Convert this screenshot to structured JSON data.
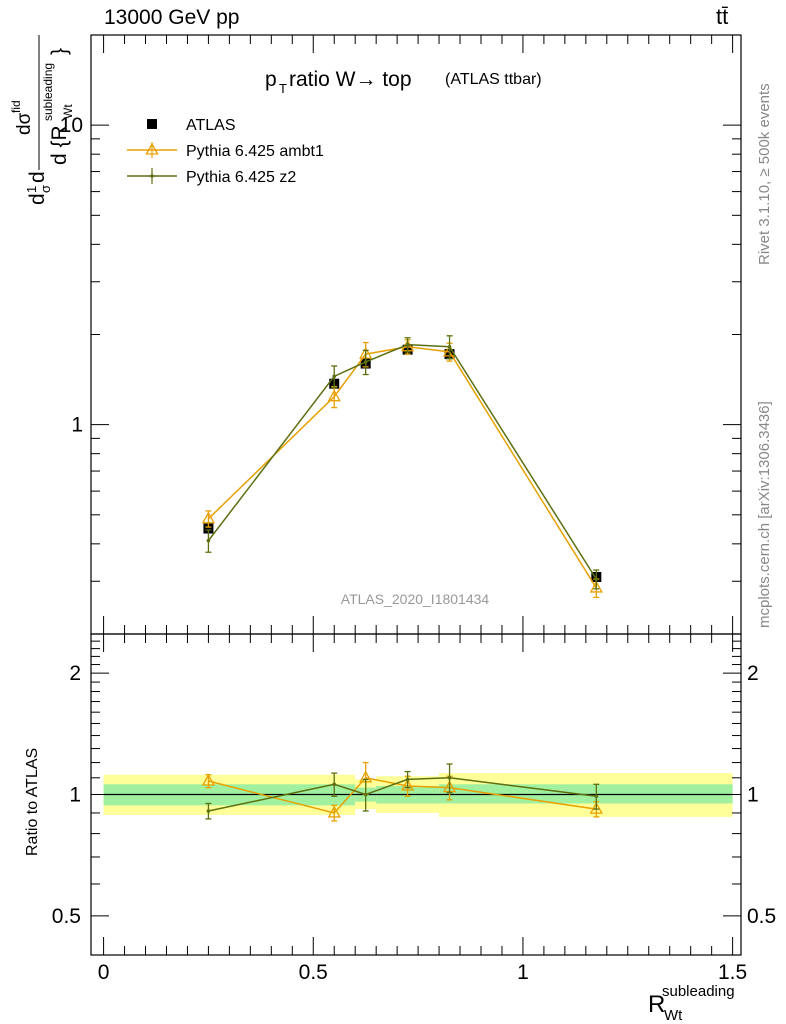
{
  "header": {
    "left": "13000 GeV pp",
    "right": "tt̄"
  },
  "side_text": {
    "rivet": "Rivet 3.1.10, ≥ 500k events",
    "mcplots": "mcplots.cern.ch [arXiv:1306.3436]"
  },
  "colors": {
    "atlas": "#000000",
    "ambt1": "#e8a000",
    "z2": "#5c7010",
    "band_inner": "#a0f0a0",
    "band_outer": "#ffff99",
    "watermark": "#999999"
  },
  "chart_data": [
    {
      "type": "line",
      "title": "p_T ratio W → top",
      "title_main": "p",
      "title_sub": "T",
      "title_rest": " ratio W→ top",
      "title_small": "(ATLAS ttbar)",
      "ylabel": "dσ/d{R_Wt^subleading} (1/σ)",
      "watermark": "ATLAS_2020_I1801434",
      "yscale": "log",
      "ylim": [
        0.2,
        20
      ],
      "xlim": [
        -0.03,
        1.52
      ],
      "legend_position": "top-left",
      "ytick_labels": [
        {
          "value": 1,
          "label": "1"
        },
        {
          "value": 10,
          "label": "10"
        }
      ],
      "x": [
        0.25,
        0.55,
        0.625,
        0.725,
        0.825,
        1.175
      ],
      "series": [
        {
          "name": "ATLAS",
          "marker": "square",
          "values": [
            0.45,
            1.37,
            1.6,
            1.78,
            1.72,
            0.31
          ]
        },
        {
          "name": "Pythia 6.425 ambt1",
          "marker": "triangle",
          "values": [
            0.485,
            1.24,
            1.72,
            1.82,
            1.75,
            0.285
          ],
          "errors": [
            0.03,
            0.1,
            0.16,
            0.1,
            0.12,
            0.02
          ]
        },
        {
          "name": "Pythia 6.425 z2",
          "marker": "dot",
          "values": [
            0.41,
            1.45,
            1.62,
            1.85,
            1.82,
            0.305
          ],
          "errors": [
            0.035,
            0.12,
            0.15,
            0.1,
            0.16,
            0.022
          ]
        }
      ]
    },
    {
      "type": "line",
      "ylabel": "Ratio to ATLAS",
      "xlabel": "R_Wt^subleading",
      "xlabel_main": "R",
      "xlabel_sup": "subleading",
      "xlabel_sub": "Wt",
      "yscale": "log",
      "ylim": [
        0.4,
        2.5
      ],
      "xlim": [
        -0.03,
        1.52
      ],
      "ytick_labels": [
        {
          "value": 0.5,
          "label": "0.5"
        },
        {
          "value": 1,
          "label": "1"
        },
        {
          "value": 2,
          "label": "2"
        }
      ],
      "xtick_labels": [
        {
          "value": 0,
          "label": "0"
        },
        {
          "value": 0.5,
          "label": "0.5"
        },
        {
          "value": 1,
          "label": "1"
        },
        {
          "value": 1.5,
          "label": "1.5"
        }
      ],
      "x": [
        0.25,
        0.55,
        0.625,
        0.725,
        0.825,
        1.175
      ],
      "bins": [
        [
          0,
          0.6
        ],
        [
          0.6,
          0.65
        ],
        [
          0.65,
          0.8
        ],
        [
          0.8,
          1.5
        ]
      ],
      "band_inner": [
        [
          0.94,
          1.06
        ],
        [
          0.96,
          1.04
        ],
        [
          0.95,
          1.05
        ],
        [
          0.95,
          1.06
        ]
      ],
      "band_outer": [
        [
          0.89,
          1.12
        ],
        [
          0.92,
          1.09
        ],
        [
          0.9,
          1.11
        ],
        [
          0.88,
          1.13
        ]
      ],
      "series": [
        {
          "name": "Pythia 6.425 ambt1",
          "values": [
            1.08,
            0.9,
            1.1,
            1.05,
            1.04,
            0.92
          ],
          "errors": [
            0.04,
            0.04,
            0.1,
            0.06,
            0.07,
            0.04
          ]
        },
        {
          "name": "Pythia 6.425 z2",
          "values": [
            0.91,
            1.06,
            1.0,
            1.09,
            1.1,
            0.99
          ],
          "errors": [
            0.04,
            0.07,
            0.09,
            0.05,
            0.09,
            0.07
          ]
        }
      ]
    }
  ]
}
